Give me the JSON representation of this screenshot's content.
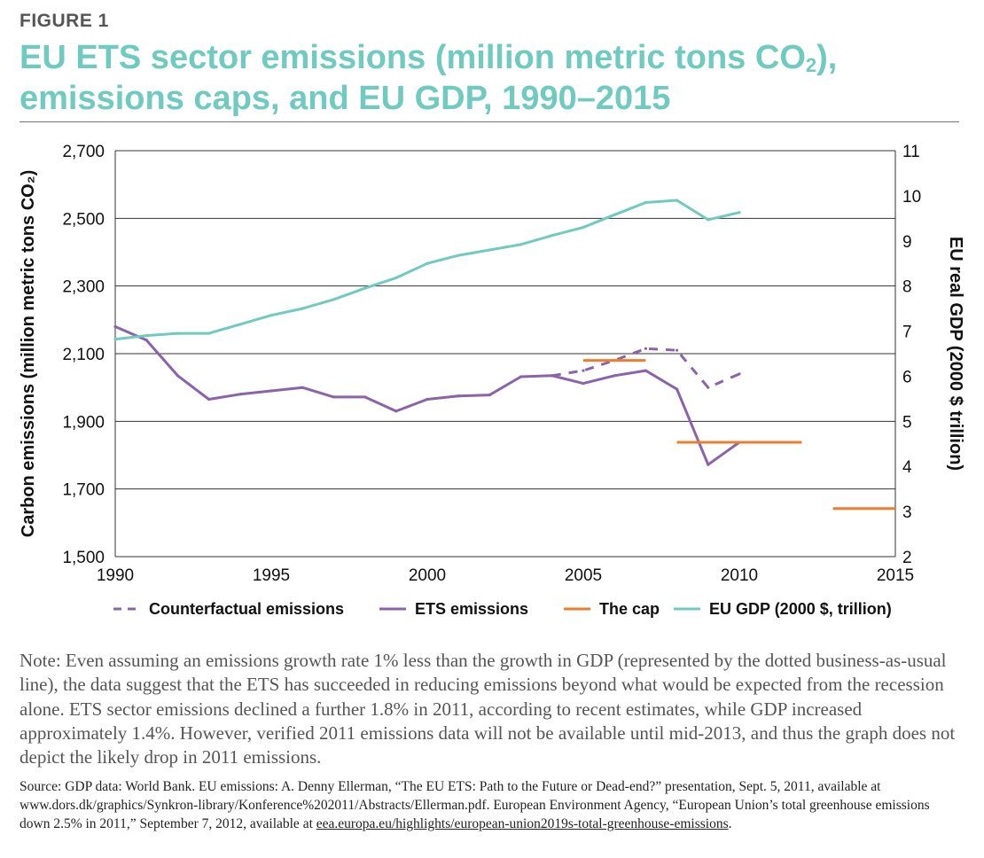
{
  "figure": {
    "label": "FIGURE 1",
    "title_line1_pre": "EU ETS sector emissions (million metric tons CO",
    "title_line1_sub": "2",
    "title_line1_post": "),",
    "title_line2": "emissions caps, and EU GDP, 1990–2015"
  },
  "colors": {
    "title": "#6fcac0",
    "counterfactual": "#8a63a8",
    "ets": "#8a63a8",
    "cap": "#ef7d2e",
    "gdp": "#6fcac0",
    "grid": "#333333"
  },
  "chart_data": {
    "type": "line",
    "xlim": [
      1990,
      2015
    ],
    "x_ticks": [
      "1990",
      "1995",
      "2000",
      "2005",
      "2010",
      "2015"
    ],
    "ylabel_left": "Carbon emissions (million metric tons CO₂)",
    "ylim_left": [
      1500,
      2700
    ],
    "y_ticks_left": [
      "1,500",
      "1,700",
      "1,900",
      "2,100",
      "2,300",
      "2,500",
      "2,700"
    ],
    "ylabel_right": "EU real GDP (2000 $ trillion)",
    "ylim_right": [
      2,
      11
    ],
    "y_ticks_right": [
      "2",
      "3",
      "4",
      "5",
      "6",
      "7",
      "8",
      "9",
      "10",
      "11"
    ],
    "grid": "horizontal",
    "legend_position": "bottom",
    "series": [
      {
        "name": "Counterfactual emissions",
        "axis": "left",
        "style": "dashed",
        "x": [
          2004,
          2005,
          2006,
          2007,
          2008,
          2009,
          2010
        ],
        "values": [
          2035,
          2050,
          2080,
          2115,
          2110,
          2000,
          2040
        ]
      },
      {
        "name": "ETS emissions",
        "axis": "left",
        "style": "solid",
        "x": [
          1990,
          1991,
          1992,
          1993,
          1994,
          1995,
          1996,
          1997,
          1998,
          1999,
          2000,
          2001,
          2002,
          2003,
          2004,
          2005,
          2006,
          2007,
          2008,
          2009,
          2010
        ],
        "values": [
          2180,
          2140,
          2035,
          1965,
          1980,
          1990,
          2000,
          1972,
          1972,
          1930,
          1965,
          1975,
          1978,
          2032,
          2035,
          2012,
          2035,
          2050,
          1995,
          1772,
          1838
        ]
      },
      {
        "name": "The cap",
        "axis": "left",
        "style": "segments",
        "segments": [
          {
            "x": [
              2005,
              2007
            ],
            "value": 2080
          },
          {
            "x": [
              2008,
              2012
            ],
            "value": 1838
          },
          {
            "x": [
              2013,
              2015
            ],
            "value": 1642
          }
        ]
      },
      {
        "name": "EU GDP (2000 $, trillion)",
        "axis": "right",
        "style": "solid",
        "x": [
          1990,
          1991,
          1992,
          1993,
          1994,
          1995,
          1996,
          1997,
          1998,
          1999,
          2000,
          2001,
          2002,
          2003,
          2004,
          2005,
          2006,
          2007,
          2008,
          2009,
          2010
        ],
        "values": [
          6.82,
          6.9,
          6.95,
          6.95,
          7.15,
          7.35,
          7.5,
          7.7,
          7.95,
          8.18,
          8.5,
          8.68,
          8.8,
          8.92,
          9.12,
          9.3,
          9.58,
          9.85,
          9.9,
          9.47,
          9.63
        ]
      }
    ]
  },
  "note": "Note: Even assuming an emissions growth rate 1% less than the growth in GDP (represented by the dotted business-as-usual line), the data suggest that the ETS has succeeded in reducing emissions beyond what would be expected from the recession alone. ETS sector emissions declined a further 1.8% in 2011, according to recent estimates, while GDP increased approximately 1.4%. However, verified 2011 emissions data will not be available until mid-2013, and thus the graph does not depict the likely drop in 2011 emissions.",
  "source": {
    "text": "Source: GDP data: World Bank. EU emissions: A. Denny Ellerman, “The EU ETS: Path to the Future or Dead-end?” presentation, Sept. 5, 2011, available at www.dors.dk/graphics/Synkron-library/Konference%202011/Abstracts/Ellerman.pdf. European Environment Agency, “European Union’s total greenhouse emissions down 2.5% in 2011,” September 7, 2012, available at ",
    "link": "eea.europa.eu/highlights/european-union2019s-total-greenhouse-emissions",
    "end": "."
  }
}
